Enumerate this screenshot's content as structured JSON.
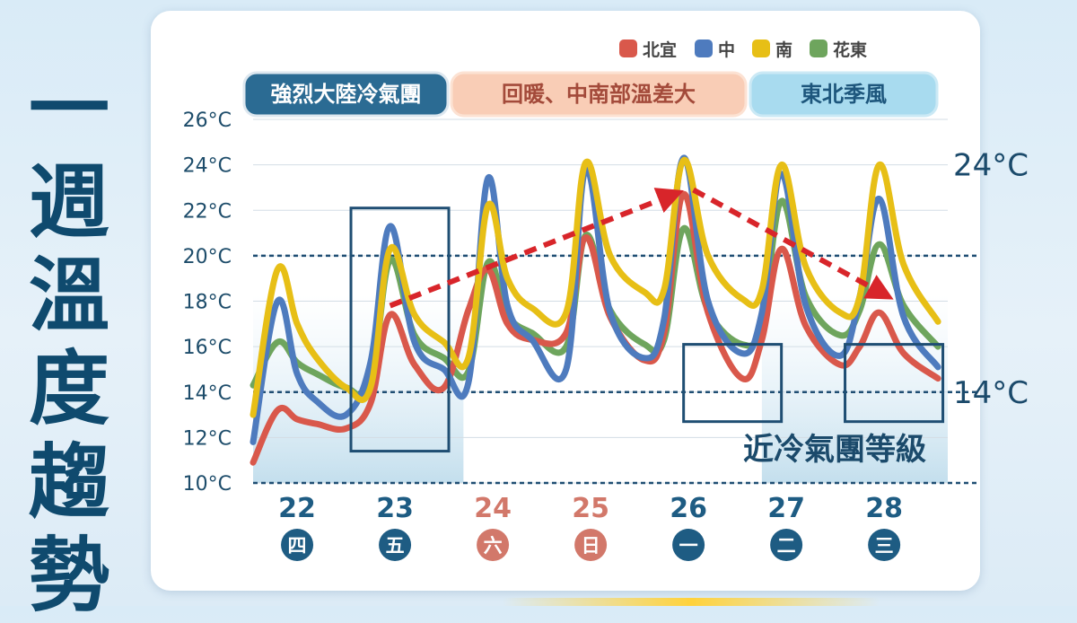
{
  "side_title": [
    "一",
    "週",
    "溫",
    "度",
    "趨",
    "勢"
  ],
  "chart_data": {
    "type": "line",
    "ylim": [
      10,
      26
    ],
    "yticks": [
      "10°C",
      "12°C",
      "14°C",
      "16°C",
      "18°C",
      "20°C",
      "22°C",
      "24°C",
      "26°C"
    ],
    "ytick_values": [
      10,
      12,
      14,
      16,
      18,
      20,
      22,
      24,
      26
    ],
    "grid": true,
    "legend_position": "top-right",
    "days": [
      {
        "date": "22",
        "weekday": "四",
        "color": "#1e5c83"
      },
      {
        "date": "23",
        "weekday": "五",
        "color": "#1e5c83"
      },
      {
        "date": "24",
        "weekday": "六",
        "color": "#d2786a"
      },
      {
        "date": "25",
        "weekday": "日",
        "color": "#d2786a"
      },
      {
        "date": "26",
        "weekday": "一",
        "color": "#1e5c83"
      },
      {
        "date": "27",
        "weekday": "二",
        "color": "#1e5c83"
      },
      {
        "date": "28",
        "weekday": "三",
        "color": "#1e5c83"
      }
    ],
    "day_ticks": [
      22,
      23,
      24,
      25,
      26,
      27,
      28
    ],
    "xlim": [
      21.55,
      28.65
    ],
    "series": [
      {
        "name": "北宜",
        "color": "#d9584b",
        "points": [
          [
            21.55,
            10.9
          ],
          [
            21.8,
            13.2
          ],
          [
            22.0,
            12.8
          ],
          [
            22.2,
            12.6
          ],
          [
            22.5,
            12.4
          ],
          [
            22.75,
            13.5
          ],
          [
            22.95,
            17.4
          ],
          [
            23.2,
            15.2
          ],
          [
            23.5,
            14.2
          ],
          [
            23.75,
            17.6
          ],
          [
            23.95,
            19.4
          ],
          [
            24.15,
            17.0
          ],
          [
            24.4,
            16.3
          ],
          [
            24.75,
            16.6
          ],
          [
            24.95,
            20.8
          ],
          [
            25.2,
            17.3
          ],
          [
            25.55,
            15.4
          ],
          [
            25.75,
            16.6
          ],
          [
            25.95,
            22.7
          ],
          [
            26.2,
            17.5
          ],
          [
            26.55,
            14.6
          ],
          [
            26.75,
            16.3
          ],
          [
            26.95,
            20.3
          ],
          [
            27.2,
            16.9
          ],
          [
            27.55,
            15.2
          ],
          [
            27.75,
            16.0
          ],
          [
            27.95,
            17.5
          ],
          [
            28.2,
            15.7
          ],
          [
            28.55,
            14.6
          ]
        ]
      },
      {
        "name": "中",
        "color": "#4e7bbe",
        "points": [
          [
            21.55,
            11.8
          ],
          [
            21.8,
            18.0
          ],
          [
            22.0,
            14.8
          ],
          [
            22.2,
            13.6
          ],
          [
            22.5,
            13.0
          ],
          [
            22.75,
            15.3
          ],
          [
            22.95,
            21.3
          ],
          [
            23.2,
            16.2
          ],
          [
            23.5,
            15.0
          ],
          [
            23.75,
            14.4
          ],
          [
            23.95,
            23.4
          ],
          [
            24.15,
            17.8
          ],
          [
            24.4,
            16.3
          ],
          [
            24.75,
            15.0
          ],
          [
            24.95,
            23.8
          ],
          [
            25.2,
            17.5
          ],
          [
            25.55,
            15.5
          ],
          [
            25.75,
            17.2
          ],
          [
            25.95,
            24.3
          ],
          [
            26.2,
            18.0
          ],
          [
            26.55,
            15.7
          ],
          [
            26.75,
            17.5
          ],
          [
            26.95,
            23.6
          ],
          [
            27.2,
            17.8
          ],
          [
            27.55,
            15.6
          ],
          [
            27.75,
            18.2
          ],
          [
            27.95,
            22.5
          ],
          [
            28.2,
            17.3
          ],
          [
            28.55,
            15.1
          ]
        ]
      },
      {
        "name": "南",
        "color": "#e7bf16",
        "points": [
          [
            21.55,
            13.0
          ],
          [
            21.8,
            19.4
          ],
          [
            22.0,
            17.0
          ],
          [
            22.2,
            15.5
          ],
          [
            22.5,
            14.2
          ],
          [
            22.75,
            14.2
          ],
          [
            22.95,
            20.3
          ],
          [
            23.2,
            17.4
          ],
          [
            23.5,
            16.2
          ],
          [
            23.75,
            15.5
          ],
          [
            23.95,
            22.2
          ],
          [
            24.15,
            19.0
          ],
          [
            24.4,
            17.7
          ],
          [
            24.75,
            17.5
          ],
          [
            24.95,
            24.1
          ],
          [
            25.2,
            20.0
          ],
          [
            25.55,
            18.4
          ],
          [
            25.75,
            18.5
          ],
          [
            25.95,
            24.2
          ],
          [
            26.2,
            20.0
          ],
          [
            26.55,
            18.1
          ],
          [
            26.75,
            18.5
          ],
          [
            26.95,
            24.0
          ],
          [
            27.2,
            19.5
          ],
          [
            27.55,
            17.5
          ],
          [
            27.75,
            18.2
          ],
          [
            27.95,
            24.0
          ],
          [
            28.2,
            19.6
          ],
          [
            28.55,
            17.1
          ]
        ]
      },
      {
        "name": "花東",
        "color": "#6ea55d",
        "points": [
          [
            21.55,
            14.3
          ],
          [
            21.8,
            16.2
          ],
          [
            22.0,
            15.3
          ],
          [
            22.2,
            14.8
          ],
          [
            22.5,
            14.2
          ],
          [
            22.75,
            14.3
          ],
          [
            22.95,
            19.8
          ],
          [
            23.2,
            16.5
          ],
          [
            23.5,
            15.5
          ],
          [
            23.75,
            14.9
          ],
          [
            23.95,
            19.7
          ],
          [
            24.15,
            17.4
          ],
          [
            24.4,
            16.6
          ],
          [
            24.75,
            16.0
          ],
          [
            24.95,
            20.9
          ],
          [
            25.2,
            17.6
          ],
          [
            25.55,
            16.1
          ],
          [
            25.75,
            16.3
          ],
          [
            25.95,
            21.2
          ],
          [
            26.2,
            17.6
          ],
          [
            26.55,
            16.1
          ],
          [
            26.75,
            17.0
          ],
          [
            26.95,
            22.4
          ],
          [
            27.2,
            18.2
          ],
          [
            27.55,
            16.5
          ],
          [
            27.75,
            17.6
          ],
          [
            27.95,
            20.5
          ],
          [
            28.2,
            17.8
          ],
          [
            28.55,
            16.0
          ]
        ]
      }
    ],
    "reference_lines": [
      {
        "value": 20
      },
      {
        "value": 14
      },
      {
        "value": 10
      }
    ],
    "reference_labels": [
      {
        "text": "24°C",
        "value": 24
      },
      {
        "text": "14°C",
        "value": 14
      }
    ],
    "phases": [
      {
        "label": "強烈大陸冷氣團",
        "bg": "#2b6b93",
        "fg": "#ffffff",
        "border": "#dde7ef",
        "from": 21.55,
        "to": 23.3
      },
      {
        "label": "回暖、中南部溫差大",
        "bg": "#f9cdb6",
        "fg": "#a34a3a",
        "border": "#fce2d3",
        "from": 23.3,
        "to": 26.2
      },
      {
        "label": "東北季風",
        "bg": "#a8dbef",
        "fg": "#1d567c",
        "border": "#cbe9f5",
        "from": 26.2,
        "to": 28.6
      }
    ],
    "shaded_periods": [
      {
        "from": 21.55,
        "to": 23.7
      },
      {
        "from": 26.75,
        "to": 28.65
      }
    ],
    "boxes": [
      {
        "from": 22.55,
        "to": 23.55,
        "y_low": 11.4,
        "y_high": 22.1
      },
      {
        "from": 25.95,
        "to": 26.95,
        "y_low": 12.7,
        "y_high": 16.1
      },
      {
        "from": 27.6,
        "to": 28.6,
        "y_low": 12.7,
        "y_high": 16.1
      }
    ],
    "box_annotation": "近冷氣團等級",
    "trend_arrows": [
      {
        "from": [
          22.95,
          17.8
        ],
        "to": [
          25.85,
          22.7
        ]
      },
      {
        "from": [
          26.05,
          22.9
        ],
        "to": [
          28.0,
          18.3
        ]
      }
    ]
  }
}
